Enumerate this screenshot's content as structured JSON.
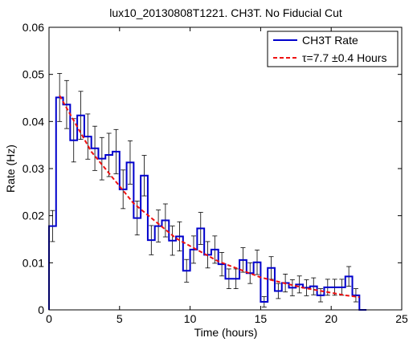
{
  "chart_data": {
    "type": "line",
    "title": "lux10_20130808T1221. CH3T. No Fiducial Cut",
    "xlabel": "Time (hours)",
    "ylabel": "Rate (Hz)",
    "xlim": [
      0,
      25
    ],
    "ylim": [
      0,
      0.06
    ],
    "xticks": [
      0,
      5,
      10,
      15,
      20,
      25
    ],
    "yticks": [
      0,
      0.01,
      0.02,
      0.03,
      0.04,
      0.05,
      0.06
    ],
    "grid": false,
    "legend_position": "top-right",
    "colors": {
      "histogram": "#0000cc",
      "fit": "#ee1111",
      "errorbar": "#000000"
    },
    "series": [
      {
        "name": "CH3T Rate",
        "style": "step",
        "x": [
          0,
          0.5,
          1,
          1.5,
          2,
          2.5,
          3,
          3.5,
          4,
          4.5,
          5,
          5.5,
          6,
          6.5,
          7,
          7.5,
          8,
          8.5,
          9,
          9.5,
          10,
          10.5,
          11,
          11.5,
          12,
          12.5,
          13,
          13.5,
          14,
          14.5,
          15,
          15.5,
          16,
          16.5,
          17,
          17.5,
          18,
          18.5,
          19,
          19.5,
          20,
          20.5,
          21,
          21.5,
          22
        ],
        "y": [
          0.0178,
          0.0451,
          0.0436,
          0.036,
          0.0413,
          0.0368,
          0.0343,
          0.0321,
          0.0329,
          0.0336,
          0.0256,
          0.0313,
          0.0195,
          0.0285,
          0.0148,
          0.0178,
          0.019,
          0.0147,
          0.0156,
          0.0083,
          0.0128,
          0.0173,
          0.0117,
          0.0128,
          0.0097,
          0.0066,
          0.0066,
          0.0106,
          0.0078,
          0.0101,
          0.0017,
          0.0089,
          0.004,
          0.0057,
          0.0047,
          0.0054,
          0.0047,
          0.005,
          0.0031,
          0.0048,
          0.0048,
          0.0048,
          0.0071,
          0.0031,
          0.0
        ],
        "yerr": [
          0.0033,
          0.0051,
          0.0051,
          0.0046,
          0.0051,
          0.0048,
          0.0047,
          0.0045,
          0.0046,
          0.0047,
          0.0041,
          0.0046,
          0.0036,
          0.0043,
          0.0031,
          0.0034,
          0.0035,
          0.0031,
          0.0031,
          0.0024,
          0.0029,
          0.0034,
          0.0028,
          0.0029,
          0.0025,
          0.0021,
          0.0021,
          0.0026,
          0.0022,
          0.0026,
          0.0011,
          0.0024,
          0.0016,
          0.0019,
          0.0017,
          0.0018,
          0.0017,
          0.0018,
          0.0014,
          0.0017,
          0.0017,
          0.0017,
          0.0021,
          0.0014,
          0.0
        ]
      },
      {
        "name": "τ=7.7  ±0.4 Hours",
        "style": "dashed",
        "x": [
          0.75,
          3,
          6,
          9,
          12,
          15,
          18,
          21,
          22
        ],
        "y": [
          0.0455,
          0.0336,
          0.0226,
          0.0152,
          0.0103,
          0.0069,
          0.0047,
          0.0031,
          0.0027
        ]
      }
    ]
  }
}
